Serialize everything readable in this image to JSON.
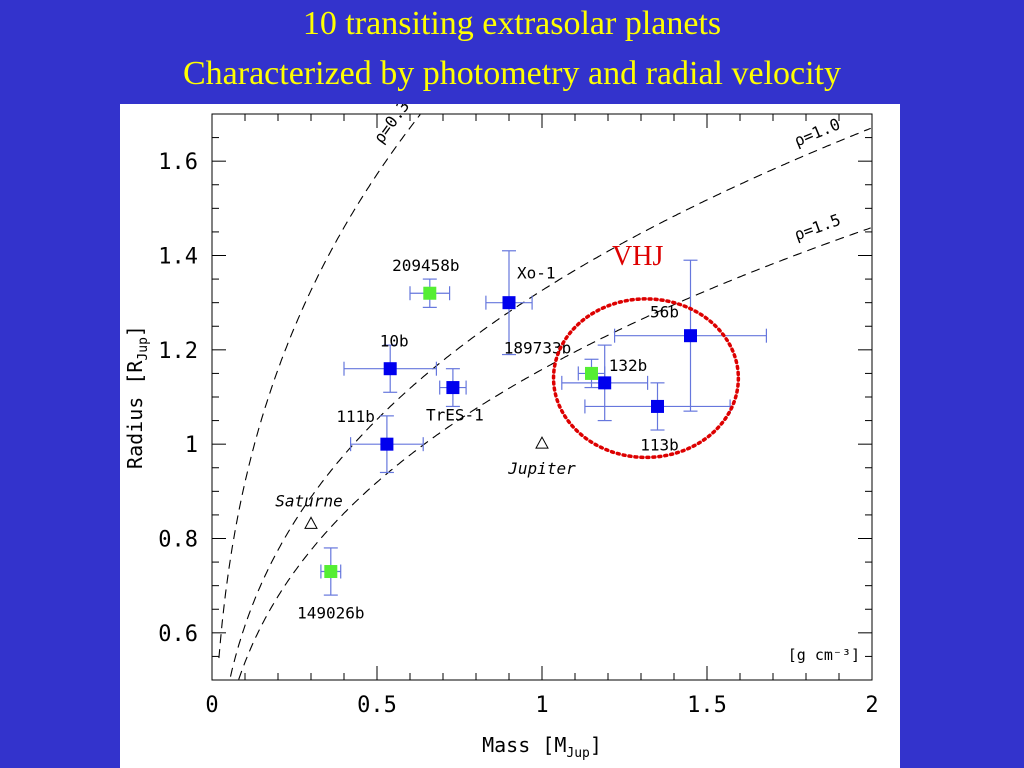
{
  "slide": {
    "title_line1": "10 transiting extrasolar planets",
    "title_line2": "Characterized by photometry and radial velocity",
    "title_color": "#ffff00",
    "background_color": "#3333cc"
  },
  "chart_data": {
    "type": "scatter",
    "xlabel": "Mass [M",
    "xlabel_sub": "Jup",
    "xlabel_end": "]",
    "ylabel": "Radius [R",
    "ylabel_sub": "Jup",
    "ylabel_end": "]",
    "xlim": [
      0,
      2
    ],
    "ylim": [
      0.5,
      1.7
    ],
    "x_ticks": [
      "0",
      "0.5",
      "1",
      "1.5",
      "2"
    ],
    "y_ticks": [
      "0.6",
      "0.8",
      "1",
      "1.2",
      "1.4",
      "1.6"
    ],
    "units_label": "[g cm⁻³]",
    "density_curves": [
      {
        "label": "ρ=0.3",
        "rho": 0.3
      },
      {
        "label": "ρ=1.0",
        "rho": 1.0
      },
      {
        "label": "ρ=1.5",
        "rho": 1.5
      }
    ],
    "planets": [
      {
        "name": "209458b",
        "mass": 0.66,
        "radius": 1.32,
        "mass_err": 0.06,
        "radius_err": 0.03,
        "color": "#55ee33"
      },
      {
        "name": "Xo-1",
        "mass": 0.9,
        "radius": 1.3,
        "mass_err": 0.07,
        "radius_err": 0.11,
        "color": "#0000ee"
      },
      {
        "name": "10b",
        "mass": 0.54,
        "radius": 1.16,
        "mass_err": 0.14,
        "radius_err": 0.05,
        "color": "#0000ee"
      },
      {
        "name": "TrES-1",
        "mass": 0.73,
        "radius": 1.12,
        "mass_err": 0.04,
        "radius_err": 0.04,
        "color": "#0000ee"
      },
      {
        "name": "111b",
        "mass": 0.53,
        "radius": 1.0,
        "mass_err": 0.11,
        "radius_err": 0.06,
        "color": "#0000ee"
      },
      {
        "name": "189733b",
        "mass": 1.15,
        "radius": 1.15,
        "mass_err": 0.04,
        "radius_err": 0.03,
        "color": "#55ee33"
      },
      {
        "name": "132b",
        "mass": 1.19,
        "radius": 1.13,
        "mass_err": 0.13,
        "radius_err": 0.08,
        "color": "#0000ee"
      },
      {
        "name": "56b",
        "mass": 1.45,
        "radius": 1.23,
        "mass_err": 0.23,
        "radius_err": 0.16,
        "color": "#0000ee"
      },
      {
        "name": "113b",
        "mass": 1.35,
        "radius": 1.08,
        "mass_err": 0.22,
        "radius_err": 0.05,
        "color": "#0000ee"
      },
      {
        "name": "149026b",
        "mass": 0.36,
        "radius": 0.73,
        "mass_err": 0.03,
        "radius_err": 0.05,
        "color": "#55ee33"
      }
    ],
    "reference_planets": [
      {
        "name": "Saturne",
        "mass": 0.3,
        "radius": 0.83
      },
      {
        "name": "Jupiter",
        "mass": 1.0,
        "radius": 1.0
      }
    ],
    "highlight": {
      "label": "VHJ",
      "color": "#dd0000",
      "center_mass": 1.315,
      "center_radius": 1.14,
      "mass_half_width": 0.28,
      "radius_half_height": 0.168
    }
  }
}
